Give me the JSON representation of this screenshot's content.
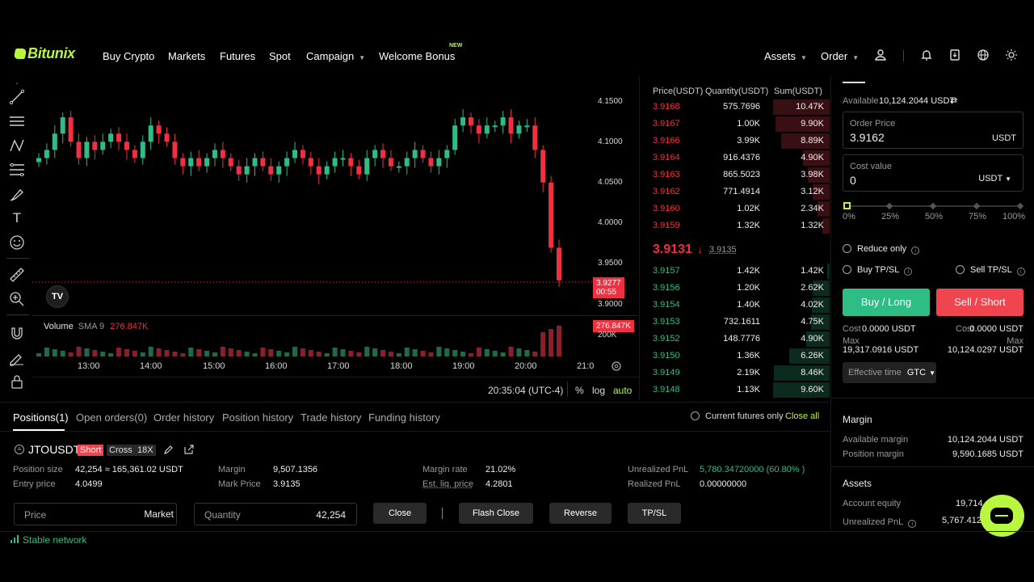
{
  "header": {
    "logo": "Bitunix",
    "nav": [
      {
        "label": "Buy Crypto"
      },
      {
        "label": "Markets"
      },
      {
        "label": "Futures"
      },
      {
        "label": "Spot"
      },
      {
        "label": "Campaign"
      },
      {
        "label": "Welcome Bonus"
      }
    ],
    "new_badge": "NEW",
    "assets": "Assets",
    "order": "Order",
    "icons": [
      "user-icon",
      "bell-icon",
      "download-icon",
      "globe-icon",
      "sun-icon"
    ]
  },
  "toolbar_icons": [
    "crosshair-icon",
    "trendline-icon",
    "parallel-lines-icon",
    "pattern-icon",
    "fib-icon",
    "brush-icon",
    "text-icon",
    "emoji-icon",
    "ruler-icon",
    "zoom-in-icon",
    "magnet-icon",
    "lock-draw-icon",
    "lock-icon"
  ],
  "chart": {
    "y_ticks": [
      "4.1500",
      "4.1000",
      "4.0500",
      "4.0000",
      "3.9500",
      "3.9000"
    ],
    "price_tag": "3.9277",
    "countdown": "00:55",
    "volume_label": "Volume",
    "sma_label": "SMA 9",
    "sma_value": "276.847K",
    "volume_tag": "276.847K",
    "volume_axis": "200K",
    "x_ticks": [
      "13:00",
      "14:00",
      "15:00",
      "16:00",
      "17:00",
      "18:00",
      "19:00",
      "20:00",
      "21:0"
    ],
    "clock": "20:35:04 (UTC-4)",
    "pct_btn": "%",
    "log_btn": "log",
    "auto_btn": "auto",
    "tv_logo": "TV"
  },
  "chart_data": {
    "type": "candlestick",
    "y_range": [
      3.9,
      4.15
    ],
    "close_approx": [
      4.08,
      4.09,
      4.11,
      4.13,
      4.1,
      4.08,
      4.1,
      4.09,
      4.1,
      4.11,
      4.1,
      4.09,
      4.08,
      4.1,
      4.12,
      4.11,
      4.1,
      4.08,
      4.07,
      4.08,
      4.07,
      4.08,
      4.09,
      4.08,
      4.07,
      4.06,
      4.07,
      4.08,
      4.07,
      4.06,
      4.07,
      4.08,
      4.09,
      4.08,
      4.07,
      4.06,
      4.07,
      4.08,
      4.08,
      4.07,
      4.06,
      4.08,
      4.09,
      4.08,
      4.07,
      4.07,
      4.08,
      4.09,
      4.08,
      4.07,
      4.08,
      4.09,
      4.12,
      4.13,
      4.12,
      4.11,
      4.12,
      4.12,
      4.13,
      4.11,
      4.12,
      4.12,
      4.09,
      4.05,
      3.97,
      3.93
    ]
  },
  "orderbook": {
    "headers": [
      "Price(USDT)",
      "Quantity(USDT)",
      "Sum(USDT)"
    ],
    "asks": [
      {
        "price": "3.9168",
        "qty": "575.7696",
        "sum": "10.47K",
        "depth": 1.0
      },
      {
        "price": "3.9167",
        "qty": "1.00K",
        "sum": "9.90K",
        "depth": 0.95
      },
      {
        "price": "3.9166",
        "qty": "3.99K",
        "sum": "8.89K",
        "depth": 0.85
      },
      {
        "price": "3.9164",
        "qty": "916.4376",
        "sum": "4.90K",
        "depth": 0.47
      },
      {
        "price": "3.9163",
        "qty": "865.5023",
        "sum": "3.98K",
        "depth": 0.38
      },
      {
        "price": "3.9162",
        "qty": "771.4914",
        "sum": "3.12K",
        "depth": 0.3
      },
      {
        "price": "3.9160",
        "qty": "1.02K",
        "sum": "2.34K",
        "depth": 0.22
      },
      {
        "price": "3.9159",
        "qty": "1.32K",
        "sum": "1.32K",
        "depth": 0.13
      }
    ],
    "last_price": "3.9131",
    "mark_price": "3.9135",
    "bids": [
      {
        "price": "3.9157",
        "qty": "1.42K",
        "sum": "1.42K",
        "depth": 0.04
      },
      {
        "price": "3.9156",
        "qty": "1.20K",
        "sum": "2.62K",
        "depth": 0.3
      },
      {
        "price": "3.9154",
        "qty": "1.40K",
        "sum": "4.02K",
        "depth": 0.31
      },
      {
        "price": "3.9153",
        "qty": "732.1611",
        "sum": "4.75K",
        "depth": 0.33
      },
      {
        "price": "3.9152",
        "qty": "148.7776",
        "sum": "4.90K",
        "depth": 0.42
      },
      {
        "price": "3.9150",
        "qty": "1.36K",
        "sum": "6.26K",
        "depth": 0.72
      },
      {
        "price": "3.9149",
        "qty": "2.19K",
        "sum": "8.46K",
        "depth": 0.99
      },
      {
        "price": "3.9148",
        "qty": "1.13K",
        "sum": "9.60K",
        "depth": 1.0
      }
    ]
  },
  "panel": {
    "available_label": "Available",
    "available_value": "10,124.2044 USDT",
    "order_price_label": "Order Price",
    "order_price_value": "3.9162",
    "order_price_unit": "USDT",
    "cost_label": "Cost value",
    "cost_value": "0",
    "cost_unit": "USDT",
    "slider_marks": [
      "0%",
      "25%",
      "50%",
      "75%",
      "100%"
    ],
    "reduce_only": "Reduce only",
    "buy_tpsl": "Buy TP/SL",
    "sell_tpsl": "Sell TP/SL",
    "buy_btn": "Buy / Long",
    "sell_btn": "Sell / Short",
    "cost_left": "Cost",
    "cost_left_val": "0.0000 USDT",
    "cost_right": "Cost",
    "cost_right_val": "0.0000 USDT",
    "max_left": "Max",
    "max_left_val": "19,317.0916 USDT",
    "max_right": "Max",
    "max_right_val": "10,124.0297 USDT",
    "eff_time": "Effective time",
    "gtc": "GTC",
    "margin_title": "Margin",
    "avail_margin_label": "Available margin",
    "avail_margin_val": "10,124.2044 USDT",
    "pos_margin_label": "Position margin",
    "pos_margin_val": "9,590.1685 USDT",
    "assets_title": "Assets",
    "equity_label": "Account equity",
    "equity_val": "19,714.",
    "upnl_label": "Unrealized PnL",
    "upnl_val": "5,767.4129"
  },
  "bottom": {
    "tabs": [
      "Positions(1)",
      "Open orders(0)",
      "Order history",
      "Position history",
      "Trade history",
      "Funding history"
    ],
    "current_only": "Current futures only",
    "close_all": "Close all",
    "symbol": "JTOUSDT",
    "side": "Short",
    "mode": "Cross",
    "leverage": "18X",
    "pos_size_label": "Position size",
    "pos_size_val": "42,254 ≈ 165,361.02 USDT",
    "entry_label": "Entry price",
    "entry_val": "4.0499",
    "margin_label": "Margin",
    "margin_val": "9,507.1356",
    "mark_label": "Mark Price",
    "mark_val": "3.9135",
    "rate_label": "Margin rate",
    "rate_val": "21.02%",
    "liq_label": "Est. liq. price",
    "liq_val": "4.2801",
    "upnl_label": "Unrealized PnL",
    "upnl_val": "5,780.34720000 (60.80% )",
    "rpnl_label": "Realized PnL",
    "rpnl_val": "0.00000000",
    "price_ph": "Price",
    "price_mode": "Market",
    "qty_ph": "Quantity",
    "qty_val": "42,254",
    "close_btn": "Close",
    "flash_btn": "Flash Close",
    "reverse_btn": "Reverse",
    "tpsl_btn": "TP/SL"
  },
  "footer": {
    "status": "Stable network"
  },
  "colors": {
    "accent": "#b9f641",
    "buy": "#2ebd85",
    "sell": "#f0303f"
  }
}
